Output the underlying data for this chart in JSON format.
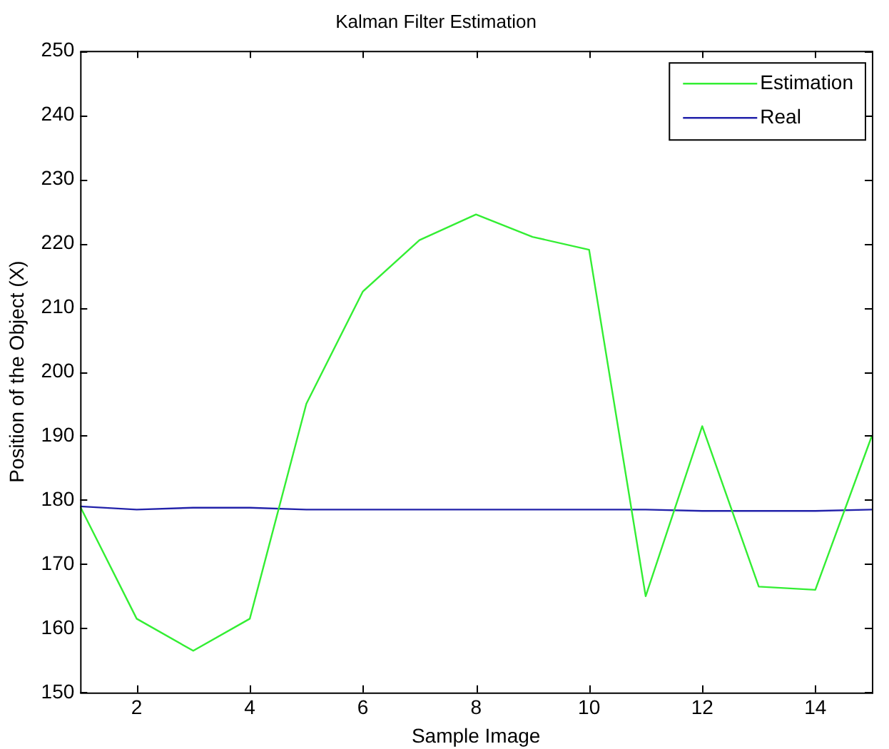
{
  "chart_data": {
    "type": "line",
    "title": "Kalman Filter Estimation",
    "xlabel": "Sample Image",
    "ylabel": "Position of the Object (X)",
    "x": [
      1,
      2,
      3,
      4,
      5,
      6,
      7,
      8,
      9,
      10,
      11,
      12,
      13,
      14,
      15
    ],
    "series": [
      {
        "name": "Estimation",
        "color": "#33ee33",
        "values": [
          179,
          161.5,
          156.5,
          161.5,
          195,
          212.5,
          220.5,
          224.5,
          221,
          219,
          165,
          191.5,
          166.5,
          166,
          190
        ]
      },
      {
        "name": "Real",
        "color": "#2222aa",
        "values": [
          179,
          178.5,
          178.8,
          178.8,
          178.5,
          178.5,
          178.5,
          178.5,
          178.5,
          178.5,
          178.5,
          178.3,
          178.3,
          178.3,
          178.5
        ]
      }
    ],
    "xlim": [
      1,
      15
    ],
    "xticks": [
      2,
      4,
      6,
      8,
      10,
      12,
      14
    ],
    "ylim": [
      150,
      250
    ],
    "yticks": [
      150,
      160,
      170,
      180,
      190,
      200,
      210,
      220,
      230,
      240,
      250
    ],
    "grid": false,
    "legend": "top right",
    "marker": "none",
    "line_style": "solid"
  }
}
